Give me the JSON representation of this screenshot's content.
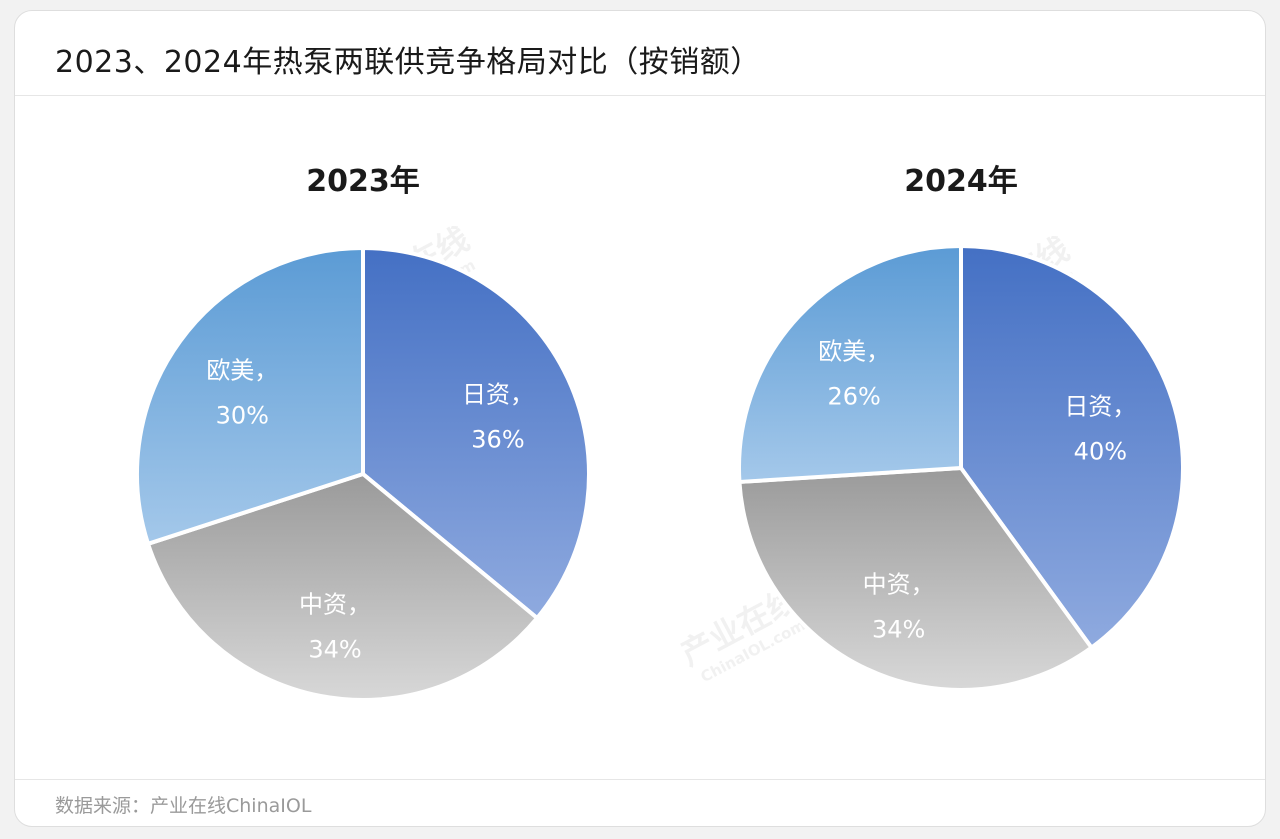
{
  "header": {
    "title": "2023、2024年热泵两联供竞争格局对比（按销额）"
  },
  "footer": {
    "source": "数据来源：产业在线ChinaIOL"
  },
  "watermark": {
    "text": "产业在线",
    "subtext": "ChinaIOL.com"
  },
  "colors": {
    "japan_top": "#4470c4",
    "japan_bottom": "#8faadf",
    "china_top": "#9a9a9a",
    "china_bottom": "#d8d8d8",
    "west_top": "#5b9bd5",
    "west_bottom": "#a4c8ea"
  },
  "chart_data": [
    {
      "type": "pie",
      "title": "2023年",
      "slices": [
        {
          "label": "日资",
          "value": 36,
          "value_label": "36%",
          "color_key": "japan"
        },
        {
          "label": "中资",
          "value": 34,
          "value_label": "34%",
          "color_key": "china"
        },
        {
          "label": "欧美",
          "value": 30,
          "value_label": "30%",
          "color_key": "west"
        }
      ],
      "label_suffix": "，"
    },
    {
      "type": "pie",
      "title": "2024年",
      "slices": [
        {
          "label": "日资",
          "value": 40,
          "value_label": "40%",
          "color_key": "japan"
        },
        {
          "label": "中资",
          "value": 34,
          "value_label": "34%",
          "color_key": "china"
        },
        {
          "label": "欧美",
          "value": 26,
          "value_label": "26%",
          "color_key": "west"
        }
      ],
      "label_suffix": "，"
    }
  ]
}
